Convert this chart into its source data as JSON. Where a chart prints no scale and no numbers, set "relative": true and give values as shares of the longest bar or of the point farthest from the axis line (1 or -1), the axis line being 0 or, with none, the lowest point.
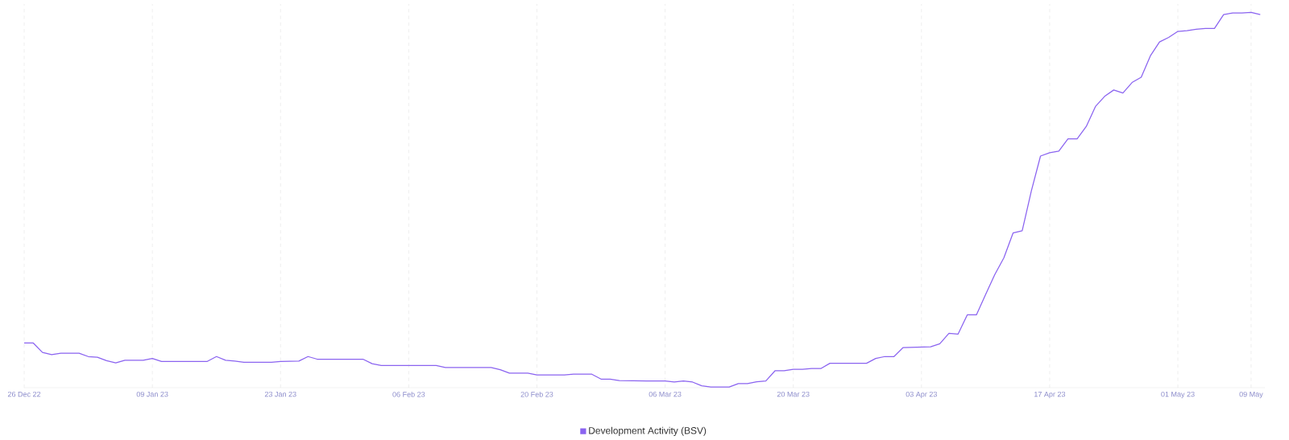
{
  "chart_data": {
    "type": "line",
    "relative": true,
    "grid": true,
    "legend": "bottom",
    "x": [
      "2022-12-26",
      "2022-12-27",
      "2022-12-28",
      "2022-12-29",
      "2022-12-30",
      "2023-01-01",
      "2023-01-02",
      "2023-01-03",
      "2023-01-04",
      "2023-01-05",
      "2023-01-06",
      "2023-01-08",
      "2023-01-09",
      "2023-01-10",
      "2023-01-15",
      "2023-01-16",
      "2023-01-17",
      "2023-01-18",
      "2023-01-19",
      "2023-01-22",
      "2023-01-23",
      "2023-01-25",
      "2023-01-26",
      "2023-01-27",
      "2023-02-01",
      "2023-02-02",
      "2023-02-03",
      "2023-02-09",
      "2023-02-10",
      "2023-02-15",
      "2023-02-16",
      "2023-02-17",
      "2023-02-19",
      "2023-02-20",
      "2023-02-23",
      "2023-02-24",
      "2023-02-26",
      "2023-02-27",
      "2023-02-28",
      "2023-03-01",
      "2023-03-04",
      "2023-03-06",
      "2023-03-07",
      "2023-03-08",
      "2023-03-09",
      "2023-03-10",
      "2023-03-11",
      "2023-03-13",
      "2023-03-14",
      "2023-03-15",
      "2023-03-16",
      "2023-03-17",
      "2023-03-18",
      "2023-03-19",
      "2023-03-20",
      "2023-03-21",
      "2023-03-22",
      "2023-03-23",
      "2023-03-24",
      "2023-03-28",
      "2023-03-29",
      "2023-03-30",
      "2023-03-31",
      "2023-04-01",
      "2023-04-04",
      "2023-04-05",
      "2023-04-06",
      "2023-04-07",
      "2023-04-08",
      "2023-04-09",
      "2023-04-10",
      "2023-04-11",
      "2023-04-12",
      "2023-04-13",
      "2023-04-14",
      "2023-04-15",
      "2023-04-16",
      "2023-04-17",
      "2023-04-18",
      "2023-04-19",
      "2023-04-20",
      "2023-04-21",
      "2023-04-22",
      "2023-04-23",
      "2023-04-24",
      "2023-04-25",
      "2023-04-26",
      "2023-04-27",
      "2023-04-28",
      "2023-04-29",
      "2023-04-30",
      "2023-05-01",
      "2023-05-02",
      "2023-05-03",
      "2023-05-04",
      "2023-05-05",
      "2023-05-06",
      "2023-05-07",
      "2023-05-08",
      "2023-05-09",
      "2023-05-10"
    ],
    "xlim": [
      "2022-12-26",
      "2023-05-10T12:00"
    ],
    "xticks": [
      {
        "value": "2022-12-26",
        "label": "26 Dec 22"
      },
      {
        "value": "2023-01-09",
        "label": "09 Jan 23"
      },
      {
        "value": "2023-01-23",
        "label": "23 Jan 23"
      },
      {
        "value": "2023-02-06",
        "label": "06 Feb 23"
      },
      {
        "value": "2023-02-20",
        "label": "20 Feb 23"
      },
      {
        "value": "2023-03-06",
        "label": "06 Mar 23"
      },
      {
        "value": "2023-03-20",
        "label": "20 Mar 23"
      },
      {
        "value": "2023-04-03",
        "label": "03 Apr 23"
      },
      {
        "value": "2023-04-17",
        "label": "17 Apr 23"
      },
      {
        "value": "2023-05-01",
        "label": "01 May 23"
      },
      {
        "value": "2023-05-09",
        "label": "09 May"
      }
    ],
    "series": [
      {
        "name": "Development Activity (BSV)",
        "color": "#8a63f0",
        "values": [
          0.119,
          0.119,
          0.094,
          0.088,
          0.092,
          0.092,
          0.083,
          0.081,
          0.072,
          0.066,
          0.073,
          0.073,
          0.078,
          0.07,
          0.07,
          0.083,
          0.073,
          0.071,
          0.068,
          0.068,
          0.07,
          0.071,
          0.083,
          0.076,
          0.076,
          0.064,
          0.059,
          0.059,
          0.054,
          0.054,
          0.048,
          0.039,
          0.039,
          0.034,
          0.034,
          0.036,
          0.036,
          0.023,
          0.023,
          0.019,
          0.018,
          0.018,
          0.015,
          0.018,
          0.015,
          0.005,
          0.002,
          0.002,
          0.011,
          0.011,
          0.016,
          0.018,
          0.045,
          0.045,
          0.049,
          0.049,
          0.051,
          0.051,
          0.065,
          0.065,
          0.078,
          0.083,
          0.083,
          0.107,
          0.109,
          0.117,
          0.145,
          0.143,
          0.194,
          0.194,
          0.248,
          0.301,
          0.346,
          0.412,
          0.418,
          0.524,
          0.617,
          0.626,
          0.63,
          0.663,
          0.663,
          0.696,
          0.749,
          0.776,
          0.793,
          0.785,
          0.813,
          0.827,
          0.884,
          0.921,
          0.933,
          0.949,
          0.951,
          0.955,
          0.957,
          0.957,
          0.994,
          0.998,
          0.998,
          1.0,
          0.994
        ]
      }
    ]
  }
}
